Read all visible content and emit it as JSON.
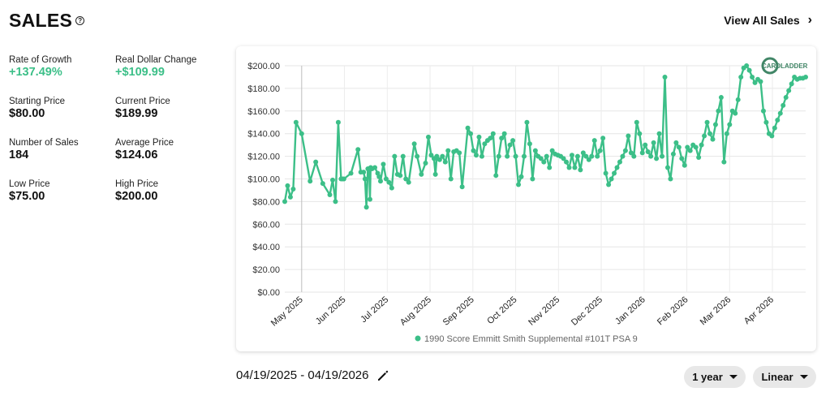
{
  "header": {
    "title": "SALES",
    "help_glyph": "?",
    "view_all_label": "View All Sales"
  },
  "stats": [
    {
      "label": "Rate of Growth",
      "value": "+137.49%",
      "green": true
    },
    {
      "label": "Real Dollar Change",
      "value": "+$109.99",
      "green": true
    },
    {
      "label": "Starting Price",
      "value": "$80.00",
      "green": false
    },
    {
      "label": "Current Price",
      "value": "$189.99",
      "green": false
    },
    {
      "label": "Number of Sales",
      "value": "184",
      "green": false
    },
    {
      "label": "Average Price",
      "value": "$124.06",
      "green": false
    },
    {
      "label": "Low Price",
      "value": "$75.00",
      "green": false
    },
    {
      "label": "High Price",
      "value": "$200.00",
      "green": false
    }
  ],
  "footer": {
    "date_range": "04/19/2025 - 04/19/2026",
    "range_select": "1 year",
    "scale_select": "Linear"
  },
  "watermark": {
    "text": "CARDLADDER"
  },
  "colors": {
    "accent": "#3cbf88",
    "line": "#3cbf88"
  },
  "chart_data": {
    "type": "line",
    "ylim": [
      0,
      200
    ],
    "yticks": [
      "$0.00",
      "$20.00",
      "$40.00",
      "$60.00",
      "$80.00",
      "$100.00",
      "$120.00",
      "$140.00",
      "$160.00",
      "$180.00",
      "$200.00"
    ],
    "xticks": [
      "May 2025",
      "Jun 2025",
      "Jul 2025",
      "Aug 2025",
      "Sep 2025",
      "Oct 2025",
      "Nov 2025",
      "Dec 2025",
      "Jan 2026",
      "Feb 2026",
      "Mar 2026",
      "Apr 2026"
    ],
    "grid": true,
    "legend": "bottom",
    "series": [
      {
        "name": "1990 Score Emmitt Smith Supplemental #101T PSA 9",
        "x": [
          -12,
          -10,
          -8,
          -6,
          -4,
          0,
          6,
          10,
          15,
          20,
          22,
          24,
          26,
          28,
          29,
          30,
          35,
          40,
          42,
          44,
          45,
          46,
          47,
          48,
          48.5,
          49,
          50,
          52,
          54,
          55,
          56,
          58,
          60,
          62,
          64,
          66,
          68,
          70,
          72,
          74,
          76,
          80,
          82,
          85,
          88,
          90,
          92,
          94,
          95,
          96,
          98,
          100,
          102,
          104,
          106,
          108,
          110,
          112,
          114,
          118,
          120,
          122,
          124,
          126,
          128,
          130,
          132,
          134,
          136,
          138,
          140,
          142,
          144,
          146,
          148,
          150,
          152,
          154,
          156,
          158,
          160,
          162,
          164,
          166,
          168,
          170,
          172,
          174,
          176,
          178,
          180,
          182,
          184,
          186,
          188,
          190,
          192,
          194,
          196,
          198,
          200,
          202,
          204,
          206,
          208,
          210,
          212,
          214,
          216,
          218,
          220,
          222,
          224,
          226,
          228,
          230,
          232,
          234,
          236,
          238,
          240,
          242,
          244,
          246,
          248,
          250,
          252,
          254,
          256,
          258,
          260,
          262,
          264,
          266,
          268,
          270,
          272,
          274,
          276,
          278,
          280,
          282,
          284,
          286,
          288,
          290,
          292,
          294,
          296,
          298,
          300,
          302,
          304,
          306,
          308,
          310,
          312,
          314,
          316,
          318,
          320,
          322,
          324,
          326,
          328,
          330,
          332,
          334,
          336,
          338,
          340,
          342,
          344,
          346,
          348,
          350,
          352,
          354,
          356,
          358
        ],
        "y": [
          80,
          94,
          84,
          91,
          150,
          140,
          98,
          115,
          96,
          86,
          99,
          80,
          150,
          100,
          100,
          100,
          105,
          126,
          106,
          106,
          100,
          75,
          109,
          108,
          82,
          110,
          109,
          110,
          105,
          102,
          98,
          113,
          100,
          97,
          92,
          120,
          104,
          103,
          120,
          100,
          97,
          131,
          120,
          104,
          114,
          137,
          121,
          118,
          104,
          120,
          117,
          120,
          115,
          125,
          100,
          124,
          125,
          123,
          93,
          145,
          140,
          125,
          121,
          137,
          120,
          131,
          134,
          136,
          140,
          103,
          120,
          136,
          140,
          120,
          130,
          134,
          120,
          95,
          102,
          120,
          150,
          131,
          100,
          125,
          120,
          118,
          115,
          120,
          110,
          125,
          122,
          121,
          120,
          118,
          115,
          110,
          121,
          110,
          120,
          108,
          123,
          120,
          117,
          120,
          134,
          120,
          125,
          136,
          105,
          95,
          100,
          105,
          110,
          115,
          120,
          125,
          138,
          123,
          120,
          150,
          140,
          123,
          130,
          124,
          120,
          132,
          118,
          140,
          120,
          190,
          110,
          100,
          122,
          132,
          128,
          118,
          112,
          128,
          125,
          130,
          128,
          119,
          130,
          138,
          150,
          140,
          135,
          148,
          160,
          172,
          115,
          140,
          148,
          160,
          158,
          170,
          190,
          198,
          200,
          196,
          190,
          185,
          188,
          186,
          160,
          150,
          140,
          138,
          145,
          152,
          158,
          165,
          172,
          178,
          184,
          190,
          188,
          189,
          189,
          190
        ],
        "note_visible_points_approx": true
      }
    ]
  }
}
